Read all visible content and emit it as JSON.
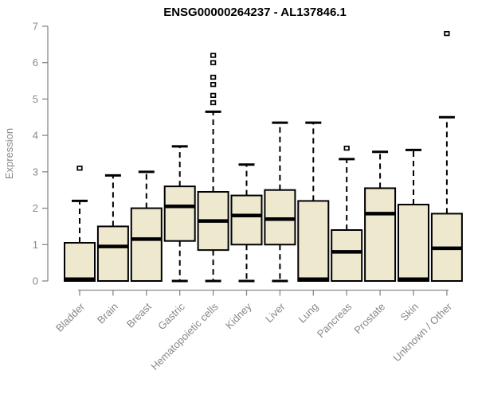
{
  "title": "ENSG00000264237 - AL137846.1",
  "chart_data": {
    "type": "boxplot",
    "title": "ENSG00000264237 - AL137846.1",
    "xlabel": "",
    "ylabel": "Expression",
    "ylim": [
      0,
      7
    ],
    "yticks": [
      0,
      1,
      2,
      3,
      4,
      5,
      6,
      7
    ],
    "grid": false,
    "legend": "none",
    "categories": [
      "Bladder",
      "Brain",
      "Breast",
      "Gastric",
      "Hematopoietic cells",
      "Kidney",
      "Liver",
      "Lung",
      "Pancreas",
      "Prostate",
      "Skin",
      "Unknown / Other"
    ],
    "series": [
      {
        "category": "Bladder",
        "whisker_low": 0,
        "q1": 0,
        "median": 0.05,
        "q3": 1.05,
        "whisker_high": 2.2,
        "outliers": [
          3.1
        ]
      },
      {
        "category": "Brain",
        "whisker_low": 0,
        "q1": 0,
        "median": 0.95,
        "q3": 1.5,
        "whisker_high": 2.9,
        "outliers": []
      },
      {
        "category": "Breast",
        "whisker_low": 0,
        "q1": 0,
        "median": 1.15,
        "q3": 2.0,
        "whisker_high": 3.0,
        "outliers": []
      },
      {
        "category": "Gastric",
        "whisker_low": 0,
        "q1": 1.1,
        "median": 2.05,
        "q3": 2.6,
        "whisker_high": 3.7,
        "outliers": []
      },
      {
        "category": "Hematopoietic cells",
        "whisker_low": 0,
        "q1": 0.85,
        "median": 1.65,
        "q3": 2.45,
        "whisker_high": 4.65,
        "outliers": [
          4.9,
          5.1,
          5.4,
          5.6,
          6.0,
          6.2
        ]
      },
      {
        "category": "Kidney",
        "whisker_low": 0,
        "q1": 1.0,
        "median": 1.8,
        "q3": 2.35,
        "whisker_high": 3.2,
        "outliers": []
      },
      {
        "category": "Liver",
        "whisker_low": 0,
        "q1": 1.0,
        "median": 1.7,
        "q3": 2.5,
        "whisker_high": 4.35,
        "outliers": []
      },
      {
        "category": "Lung",
        "whisker_low": 0,
        "q1": 0,
        "median": 0.05,
        "q3": 2.2,
        "whisker_high": 4.35,
        "outliers": []
      },
      {
        "category": "Pancreas",
        "whisker_low": 0,
        "q1": 0,
        "median": 0.8,
        "q3": 1.4,
        "whisker_high": 3.35,
        "outliers": [
          3.65
        ]
      },
      {
        "category": "Prostate",
        "whisker_low": 0,
        "q1": 0,
        "median": 1.85,
        "q3": 2.55,
        "whisker_high": 3.55,
        "outliers": []
      },
      {
        "category": "Skin",
        "whisker_low": 0,
        "q1": 0,
        "median": 0.05,
        "q3": 2.1,
        "whisker_high": 3.6,
        "outliers": []
      },
      {
        "category": "Unknown / Other",
        "whisker_low": 0,
        "q1": 0,
        "median": 0.9,
        "q3": 1.85,
        "whisker_high": 4.5,
        "outliers": [
          6.8
        ]
      }
    ],
    "colors": {
      "background": "#ffffff",
      "box_fill": "#EDE8CE",
      "box_border": "#000000",
      "median": "#000000",
      "whisker": "#000000",
      "outlier": "#000000",
      "axis": "#888888",
      "tick_label": "#888888",
      "title": "#000000"
    }
  }
}
